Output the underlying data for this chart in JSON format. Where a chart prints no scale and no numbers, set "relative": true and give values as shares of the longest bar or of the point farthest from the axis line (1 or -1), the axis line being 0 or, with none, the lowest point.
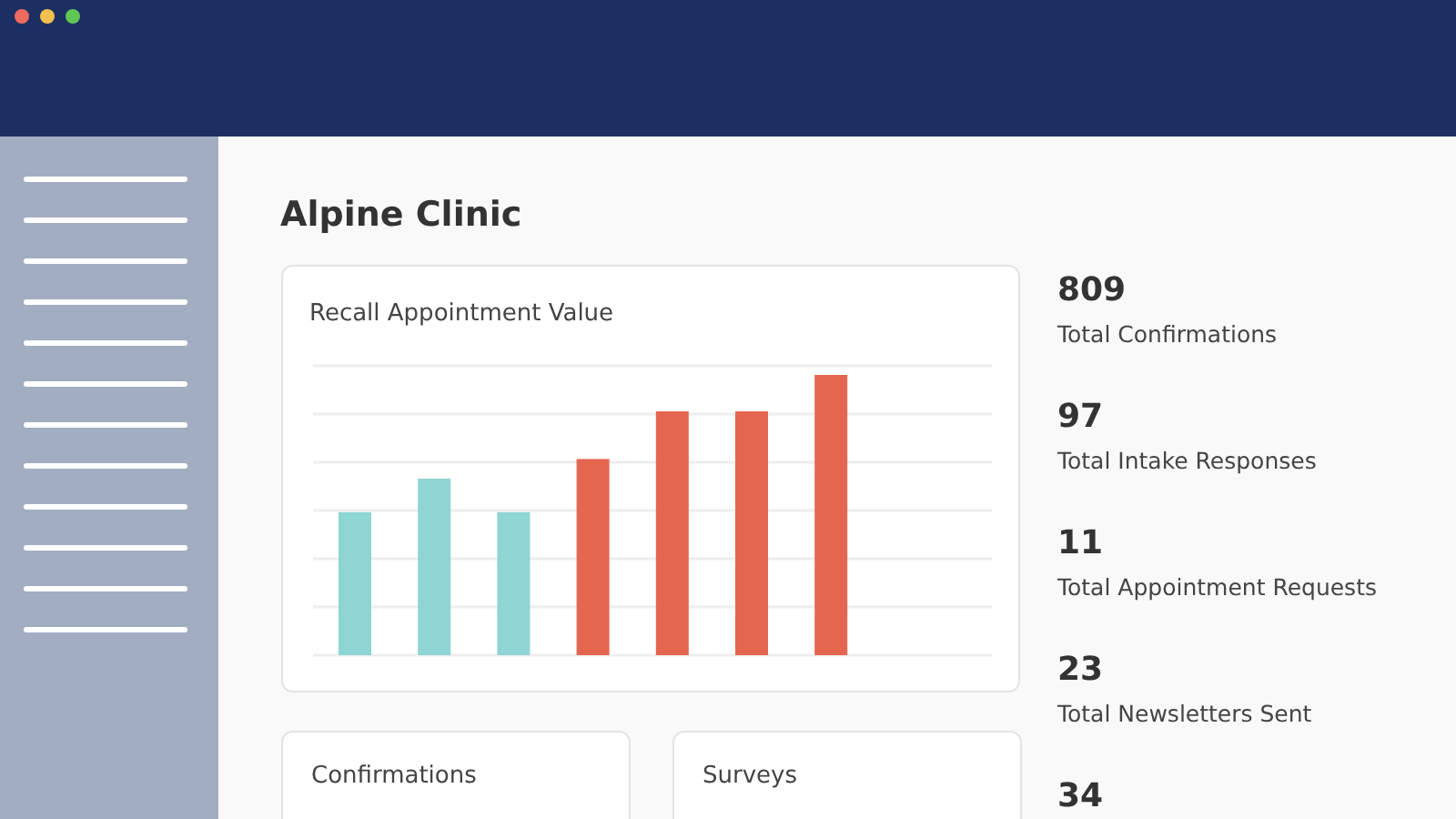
{
  "chart_data": [
    {
      "type": "other",
      "title": "Alpine Clinic"
    },
    {
      "type": "bar",
      "title": "Recall Appointment Value",
      "categories": [
        null,
        null,
        null,
        null,
        null,
        null,
        null
      ],
      "values": [
        0.51,
        0.63,
        0.51,
        0.7,
        0.87,
        0.87,
        1
      ],
      "colors": [
        "#8ed5d3",
        "#8ed5d3",
        "#8ed5d3",
        "#e5664f",
        "#e5664f",
        "#e5664f",
        "#e5664f"
      ],
      "relative": true,
      "grid": true
    },
    {
      "type": "other",
      "annotations": [
        "809",
        "Total Confirmations",
        "97",
        "Total Intake Responses",
        "11",
        "Total Appointment Requests",
        "23",
        "Total Newsletters Sent",
        "34"
      ]
    },
    {
      "type": "other",
      "title": "Confirmations"
    },
    {
      "type": "other",
      "title": "Surveys"
    }
  ]
}
